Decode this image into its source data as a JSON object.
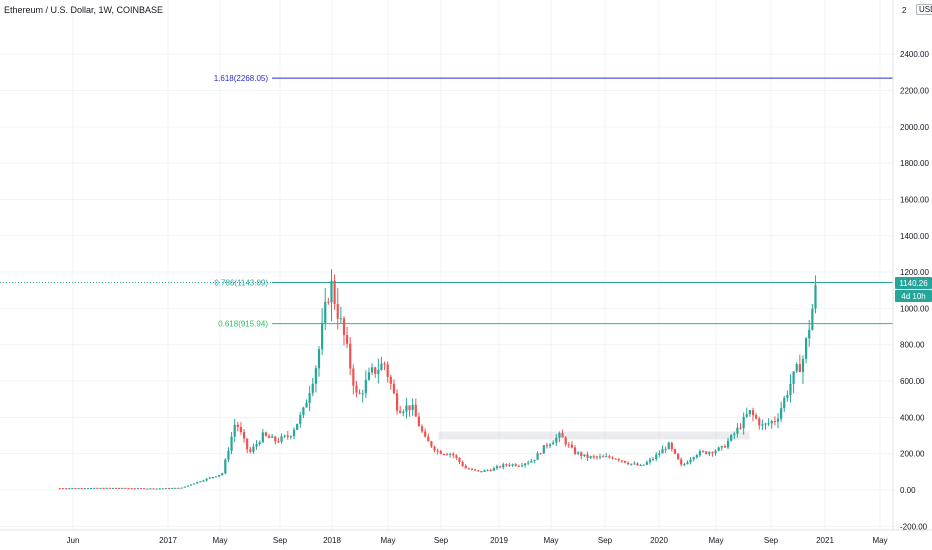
{
  "header": {
    "symbol_title": "Ethereum / U.S. Dollar, 1W, COINBASE",
    "currency": "USD",
    "top_right_tick": "2"
  },
  "chart_data": {
    "type": "candlestick",
    "title": "Ethereum / U.S. Dollar, 1W, COINBASE",
    "x_tick_labels": [
      "Jun",
      "2017",
      "May",
      "Sep",
      "2018",
      "May",
      "Sep",
      "2019",
      "May",
      "Sep",
      "2020",
      "May",
      "Sep",
      "2021",
      "May"
    ],
    "y_tick_labels": [
      "2400.00",
      "2200.00",
      "2000.00",
      "1800.00",
      "1600.00",
      "1400.00",
      "1200.00",
      "1000.00",
      "800.00",
      "600.00",
      "400.00",
      "200.00",
      "0.00",
      "-200.00"
    ],
    "ylim": [
      -200,
      2600
    ],
    "fib_levels": [
      {
        "label": "1.618(2268.05)",
        "value": 2268.05,
        "color": "#2a2acf"
      },
      {
        "label": "0.786(1143.09)",
        "value": 1143.09,
        "color": "#26a69a"
      },
      {
        "label": "0.618(915.94)",
        "value": 915.94,
        "color": "#22c55e"
      }
    ],
    "last_price": {
      "label": "1140.26",
      "value": 1140.26,
      "countdown": "4d 10h"
    },
    "support_zone": {
      "from": "2018-09",
      "to": "2020-08",
      "value": 300
    },
    "price_path": [
      [
        "2016-05",
        10
      ],
      [
        "2016-09",
        11
      ],
      [
        "2016-12",
        8
      ],
      [
        "2017-02",
        12
      ],
      [
        "2017-03",
        40
      ],
      [
        "2017-05",
        90
      ],
      [
        "2017-06",
        380
      ],
      [
        "2017-07",
        200
      ],
      [
        "2017-08",
        300
      ],
      [
        "2017-09",
        270
      ],
      [
        "2017-10",
        300
      ],
      [
        "2017-11",
        430
      ],
      [
        "2017-12",
        700
      ],
      [
        "2018-01",
        1150
      ],
      [
        "2018-02",
        850
      ],
      [
        "2018-03",
        500
      ],
      [
        "2018-04",
        640
      ],
      [
        "2018-05",
        700
      ],
      [
        "2018-06",
        450
      ],
      [
        "2018-07",
        460
      ],
      [
        "2018-08",
        280
      ],
      [
        "2018-09",
        210
      ],
      [
        "2018-10",
        200
      ],
      [
        "2018-11",
        120
      ],
      [
        "2018-12",
        100
      ],
      [
        "2019-01",
        115
      ],
      [
        "2019-02",
        140
      ],
      [
        "2019-03",
        140
      ],
      [
        "2019-04",
        165
      ],
      [
        "2019-05",
        250
      ],
      [
        "2019-06",
        300
      ],
      [
        "2019-07",
        210
      ],
      [
        "2019-08",
        180
      ],
      [
        "2019-09",
        180
      ],
      [
        "2019-10",
        180
      ],
      [
        "2019-11",
        150
      ],
      [
        "2019-12",
        130
      ],
      [
        "2020-01",
        180
      ],
      [
        "2020-02",
        250
      ],
      [
        "2020-03",
        130
      ],
      [
        "2020-04",
        200
      ],
      [
        "2020-05",
        210
      ],
      [
        "2020-06",
        230
      ],
      [
        "2020-07",
        320
      ],
      [
        "2020-08",
        430
      ],
      [
        "2020-09",
        350
      ],
      [
        "2020-10",
        390
      ],
      [
        "2020-11",
        580
      ],
      [
        "2020-12",
        730
      ],
      [
        "2021-01",
        1140
      ]
    ]
  }
}
